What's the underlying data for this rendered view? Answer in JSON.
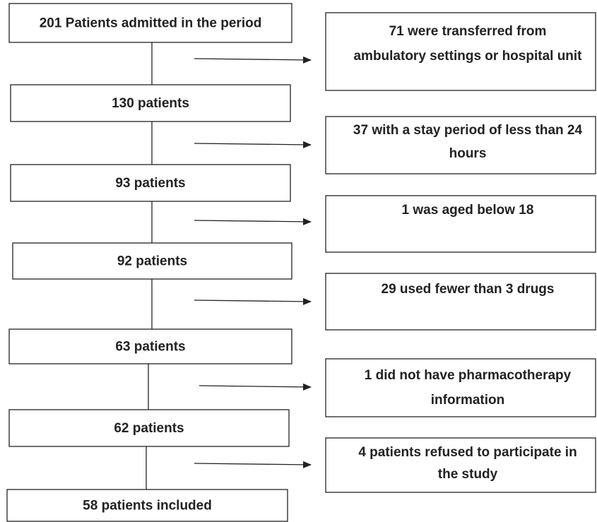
{
  "nodes": [
    {
      "label": "201 Patients admitted in the period"
    },
    {
      "label": "130 patients"
    },
    {
      "label": "93 patients"
    },
    {
      "label": "92 patients"
    },
    {
      "label": "63 patients"
    },
    {
      "label": "62 patients"
    },
    {
      "label": "58 patients included"
    }
  ],
  "exclusions": [
    {
      "lines": [
        "71 were transferred from",
        "ambulatory settings or hospital unit"
      ]
    },
    {
      "lines": [
        "37 with a stay period of less than 24",
        "hours"
      ]
    },
    {
      "lines": [
        "1 was aged below 18"
      ]
    },
    {
      "lines": [
        "29 used fewer than 3 drugs"
      ]
    },
    {
      "lines": [
        "1 did not have pharmacotherapy",
        "information"
      ]
    },
    {
      "lines": [
        "4 patients refused to participate in",
        "the study"
      ]
    }
  ]
}
